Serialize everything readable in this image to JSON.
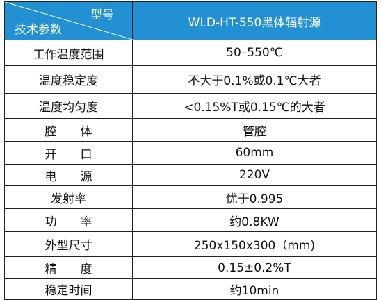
{
  "header": {
    "model_label": "型号",
    "param_label": "技术参数",
    "title": "WLD-HT-550黑体辐射源"
  },
  "table": {
    "rows": [
      [
        "工作温度范围",
        "50–550℃"
      ],
      [
        "温度稳定度",
        "不大于0.1%或0.1℃大者"
      ],
      [
        "温度均匀度",
        "<0.15%T或0.15℃的大者"
      ],
      [
        "腔　　体",
        "管腔"
      ],
      [
        "开　　口",
        "60mm"
      ],
      [
        "电　　源",
        "220V"
      ],
      [
        "发射率",
        "优于0.995"
      ],
      [
        "功　　率",
        "约0.8KW"
      ],
      [
        "外型尺寸",
        "250x150x300（mm)"
      ],
      [
        "精　　度",
        "0.15±0.2%T"
      ],
      [
        "稳定时间",
        "约10min"
      ]
    ]
  }
}
